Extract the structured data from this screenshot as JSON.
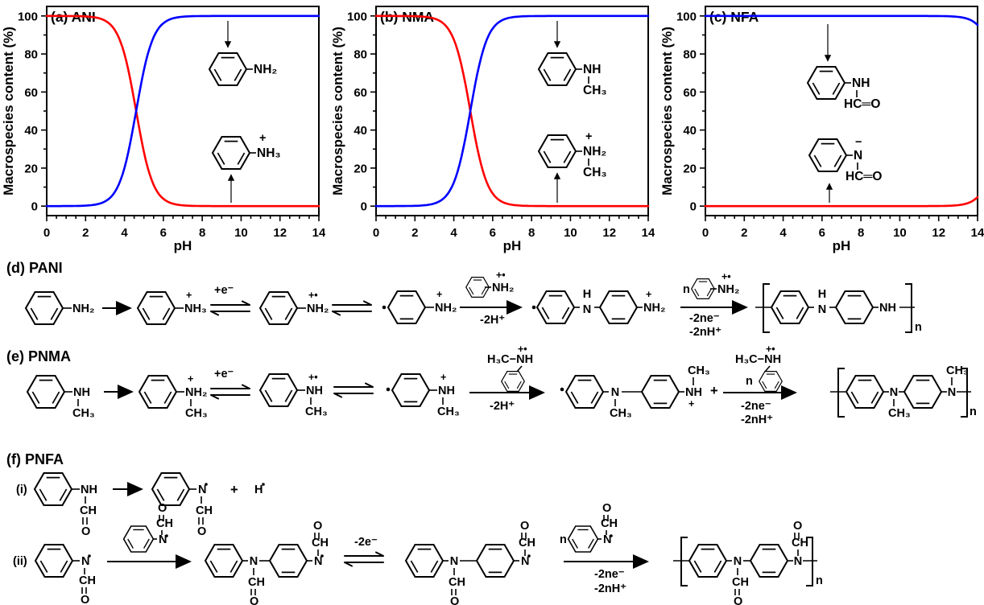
{
  "figure": {
    "description": "Acid-base macrospecies distribution of ANI, NMA and NFA monomers and oxidative polymerization mechanisms of PANI, PNMA and PNFA"
  },
  "chart_data": [
    {
      "type": "line",
      "title": "(a) ANI",
      "xlabel": "pH",
      "ylabel": "Macrospecies content (%)",
      "xlim": [
        0,
        14
      ],
      "ylim": [
        0,
        100
      ],
      "x_major_ticks": [
        0,
        2,
        4,
        6,
        8,
        10,
        12,
        14
      ],
      "y_major_ticks": [
        0,
        20,
        40,
        60,
        80,
        100
      ],
      "x_minor_step": 0.5,
      "y_minor_step": 10,
      "grid": false,
      "series": [
        {
          "name": "protonated anilinium cation (C6H5-NH3+)",
          "color": "#ff0000",
          "shape": "sigmoid-decreasing",
          "midpoint_pH": 4.6,
          "y_at_pH0": 100,
          "y_at_pH14": 0
        },
        {
          "name": "neutral aniline (C6H5-NH2)",
          "color": "#0000ff",
          "shape": "sigmoid-increasing",
          "midpoint_pH": 4.6,
          "y_at_pH0": 0,
          "y_at_pH14": 100
        }
      ]
    },
    {
      "type": "line",
      "title": "(b) NMA",
      "xlabel": "pH",
      "ylabel": "Macrospecies content (%)",
      "xlim": [
        0,
        14
      ],
      "ylim": [
        0,
        100
      ],
      "x_major_ticks": [
        0,
        2,
        4,
        6,
        8,
        10,
        12,
        14
      ],
      "y_major_ticks": [
        0,
        20,
        40,
        60,
        80,
        100
      ],
      "x_minor_step": 0.5,
      "y_minor_step": 10,
      "grid": false,
      "series": [
        {
          "name": "protonated N-methylanilinium cation (C6H5-NH2+-CH3)",
          "color": "#ff0000",
          "shape": "sigmoid-decreasing",
          "midpoint_pH": 4.85,
          "y_at_pH0": 100,
          "y_at_pH14": 0
        },
        {
          "name": "neutral N-methylaniline (C6H5-NH-CH3)",
          "color": "#0000ff",
          "shape": "sigmoid-increasing",
          "midpoint_pH": 4.85,
          "y_at_pH0": 0,
          "y_at_pH14": 100
        }
      ]
    },
    {
      "type": "line",
      "title": "(c) NFA",
      "xlabel": "pH",
      "ylabel": "Macrospecies content (%)",
      "xlim": [
        0,
        14
      ],
      "ylim": [
        0,
        100
      ],
      "x_major_ticks": [
        0,
        2,
        4,
        6,
        8,
        10,
        12,
        14
      ],
      "y_major_ticks": [
        0,
        20,
        40,
        60,
        80,
        100
      ],
      "x_minor_step": 0.5,
      "y_minor_step": 10,
      "grid": false,
      "series": [
        {
          "name": "neutral N-formylaniline (C6H5-NH-CHO)",
          "color": "#0000ff",
          "shape": "sigmoid-decreasing",
          "midpoint_pH": 15.3,
          "y_at_pH0": 100,
          "y_at_pH14": 95
        },
        {
          "name": "deprotonated N-formylanilide anion (C6H5-N(-)-CHO)",
          "color": "#ff0000",
          "shape": "sigmoid-increasing",
          "midpoint_pH": 15.3,
          "y_at_pH0": 0,
          "y_at_pH14": 5
        }
      ]
    }
  ],
  "schemes": {
    "d": "(d) PANI",
    "e": "(e) PNMA",
    "f": "(f) PNFA",
    "i": "(i)",
    "ii": "(ii)"
  },
  "chem": {
    "nh2": "NH₂",
    "nh3": "NH₃",
    "nh": "NH",
    "ch3": "CH₃",
    "ch": "CH",
    "n": "N",
    "h": "H",
    "o": "O",
    "plus": "+",
    "plus_rad": "+•",
    "minus": "−",
    "pe": "+e⁻",
    "m2h": "-2H⁺",
    "m2e": "-2e⁻",
    "m2ne": "-2ne⁻",
    "m2nh": "-2nH⁺",
    "n_var": "n",
    "h3cnh": "H₃C−NH",
    "hcho": "HC═O"
  }
}
